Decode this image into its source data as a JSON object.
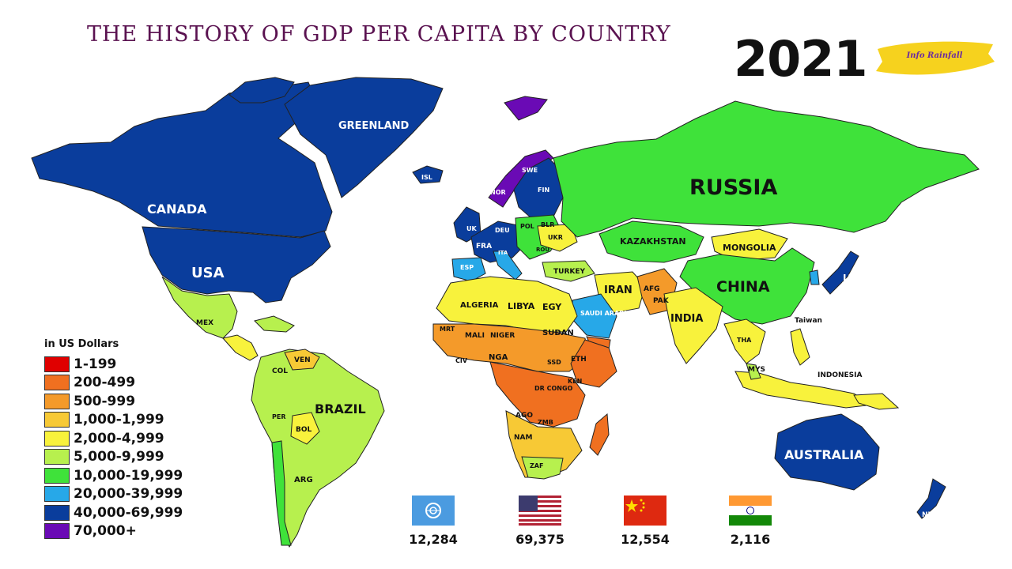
{
  "title": "THE HISTORY OF GDP PER CAPITA BY COUNTRY",
  "year": "2021",
  "brand": "Info Rainfall",
  "legend": {
    "title": "in US Dollars",
    "items": [
      {
        "label": "1-199",
        "color": "#e00000"
      },
      {
        "label": "200-499",
        "color": "#f07020"
      },
      {
        "label": "500-999",
        "color": "#f49a2a"
      },
      {
        "label": "1,000-1,999",
        "color": "#f7c935"
      },
      {
        "label": "2,000-4,999",
        "color": "#f8f23c"
      },
      {
        "label": "5,000-9,999",
        "color": "#b7f04e"
      },
      {
        "label": "10,000-19,999",
        "color": "#3fe23a"
      },
      {
        "label": "20,000-39,999",
        "color": "#27a8e8"
      },
      {
        "label": "40,000-69,999",
        "color": "#0a3d9c"
      },
      {
        "label": "70,000+",
        "color": "#6a0ab5"
      }
    ]
  },
  "map_labels": {
    "greenland": "GREENLAND",
    "canada": "CANADA",
    "usa": "USA",
    "russia": "RUSSIA",
    "kazakhstan": "KAZAKHSTAN",
    "mongolia": "MONGOLIA",
    "china": "CHINA",
    "japan": "JAPAN",
    "taiwan": "Taiwan",
    "iran": "IRAN",
    "afg": "AFG",
    "pak": "PAK",
    "india": "INDIA",
    "tha": "THA",
    "mys": "MYS",
    "indonesia": "INDONESIA",
    "australia": "AUSTRALIA",
    "nzl": "NZL",
    "isl": "ISL",
    "swe": "SWE",
    "nor": "NOR",
    "fin": "FIN",
    "uk": "UK",
    "deu": "DEU",
    "pol": "POL",
    "blr": "BLR",
    "ukr": "UKR",
    "fra": "FRA",
    "ita": "ITA",
    "rou": "ROU",
    "esp": "ESP",
    "turkey": "TURKEY",
    "algeria": "ALGERIA",
    "libya": "LIBYA",
    "egy": "EGY",
    "saudi": "SAUDI ARABIA",
    "mrt": "MRT",
    "mali": "MALI",
    "niger": "NIGER",
    "sudan": "SUDAN",
    "civ": "CIV",
    "nga": "NGA",
    "ssd": "SSD",
    "eth": "ETH",
    "drcongo": "DR CONGO",
    "ken": "KEN",
    "ago": "AGO",
    "zmb": "ZMB",
    "nam": "NAM",
    "zaf": "ZAF",
    "mex": "MEX",
    "col": "COL",
    "ven": "VEN",
    "brazil": "BRAZIL",
    "per": "PER",
    "bol": "BOL",
    "arg": "ARG"
  },
  "stats": [
    {
      "flag": "un-flag",
      "value": "12,284"
    },
    {
      "flag": "usa-flag",
      "value": "69,375"
    },
    {
      "flag": "china-flag",
      "value": "12,554"
    },
    {
      "flag": "india-flag",
      "value": "2,116"
    }
  ]
}
